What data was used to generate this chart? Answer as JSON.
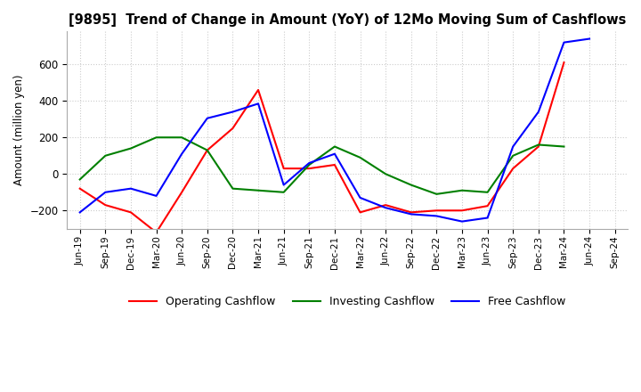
{
  "title": "[9895]  Trend of Change in Amount (YoY) of 12Mo Moving Sum of Cashflows",
  "ylabel": "Amount (million yen)",
  "x_labels": [
    "Jun-19",
    "Sep-19",
    "Dec-19",
    "Mar-20",
    "Jun-20",
    "Sep-20",
    "Dec-20",
    "Mar-21",
    "Jun-21",
    "Sep-21",
    "Dec-21",
    "Mar-22",
    "Jun-22",
    "Sep-22",
    "Dec-22",
    "Mar-23",
    "Jun-23",
    "Sep-23",
    "Dec-23",
    "Mar-24",
    "Jun-24",
    "Sep-24"
  ],
  "operating": [
    -80,
    -170,
    -210,
    -320,
    -100,
    130,
    250,
    460,
    30,
    30,
    50,
    -210,
    -170,
    -210,
    -200,
    -200,
    -175,
    30,
    150,
    610,
    null,
    null
  ],
  "investing": [
    -30,
    100,
    140,
    200,
    200,
    130,
    -80,
    -90,
    -100,
    50,
    150,
    90,
    0,
    -60,
    -110,
    -90,
    -100,
    100,
    160,
    150,
    null,
    null
  ],
  "free": [
    -210,
    -100,
    -80,
    -120,
    110,
    305,
    340,
    385,
    -60,
    60,
    110,
    -130,
    -185,
    -220,
    -230,
    -260,
    -240,
    150,
    340,
    720,
    740,
    null
  ],
  "operating_color": "#ff0000",
  "investing_color": "#008000",
  "free_color": "#0000ff",
  "ylim": [
    -300,
    780
  ],
  "yticks": [
    -200,
    0,
    200,
    400,
    600
  ],
  "grid_color": "#cccccc",
  "grid_style": "dotted"
}
